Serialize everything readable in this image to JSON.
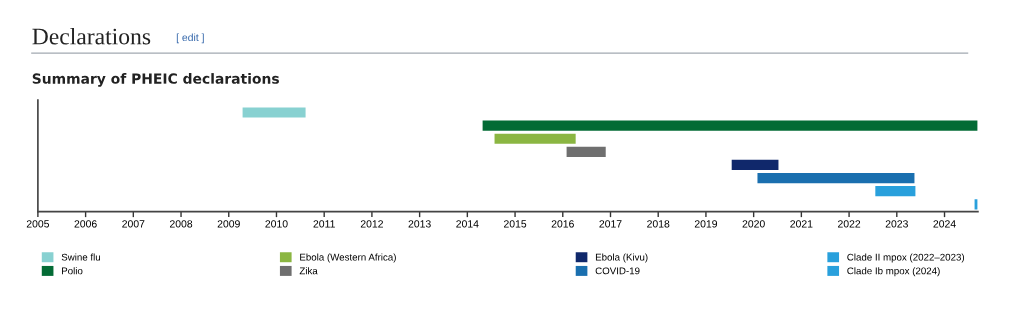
{
  "chart_data": {
    "type": "bar",
    "orientation": "horizontal",
    "title": "Declarations",
    "subtitle": "Summary of PHEIC declarations",
    "annotations": [
      "[ edit ]"
    ],
    "categories": [
      null,
      null,
      null,
      null,
      null,
      null,
      null,
      null
    ],
    "series": [
      {
        "name": "Swine flu",
        "color": "#88d1d1",
        "values": [
          1.32,
          null,
          null,
          null,
          null,
          null,
          null,
          null
        ],
        "base": [
          2009.29,
          null,
          null,
          null,
          null,
          null,
          null,
          null
        ]
      },
      {
        "name": "Polio",
        "color": "#036b35",
        "values": [
          null,
          10.37,
          null,
          null,
          null,
          null,
          null,
          null
        ],
        "base": [
          null,
          2014.32,
          null,
          null,
          null,
          null,
          null,
          null
        ]
      },
      {
        "name": "Ebola (Western Africa)",
        "color": "#8bb642",
        "values": [
          null,
          null,
          1.7,
          null,
          null,
          null,
          null,
          null
        ],
        "base": [
          null,
          null,
          2014.57,
          null,
          null,
          null,
          null,
          null
        ]
      },
      {
        "name": "Zika",
        "color": "#6f6f6f",
        "values": [
          null,
          null,
          null,
          0.82,
          null,
          null,
          null,
          null
        ],
        "base": [
          null,
          null,
          null,
          2016.08,
          null,
          null,
          null,
          null
        ]
      },
      {
        "name": "Ebola (Kivu)",
        "color": "#10286b",
        "values": [
          null,
          null,
          null,
          null,
          0.98,
          null,
          null,
          null
        ],
        "base": [
          null,
          null,
          null,
          null,
          2019.54,
          null,
          null,
          null
        ]
      },
      {
        "name": "COVID-19",
        "color": "#1a6faf",
        "values": [
          null,
          null,
          null,
          null,
          null,
          3.29,
          null,
          null
        ],
        "base": [
          null,
          null,
          null,
          null,
          null,
          2020.08,
          null,
          null
        ]
      },
      {
        "name": "Clade II mpox (2022–2023)",
        "color": "#29a0dc",
        "values": [
          null,
          null,
          null,
          null,
          null,
          null,
          0.84,
          null
        ],
        "base": [
          null,
          null,
          null,
          null,
          null,
          null,
          2022.55,
          null
        ]
      },
      {
        "name": "Clade Ib mpox (2024)",
        "color": "#29a0dc",
        "values": [
          null,
          null,
          null,
          null,
          null,
          null,
          null,
          0.06
        ],
        "base": [
          null,
          null,
          null,
          null,
          null,
          null,
          null,
          2024.63
        ]
      }
    ],
    "xlim": [
      2005,
      2024.7
    ],
    "xticks": [
      2005,
      2006,
      2007,
      2008,
      2009,
      2010,
      2011,
      2012,
      2013,
      2014,
      2015,
      2016,
      2017,
      2018,
      2019,
      2020,
      2021,
      2022,
      2023,
      2024
    ],
    "tick_labels": "x",
    "legend": "bottom",
    "grid": false
  }
}
